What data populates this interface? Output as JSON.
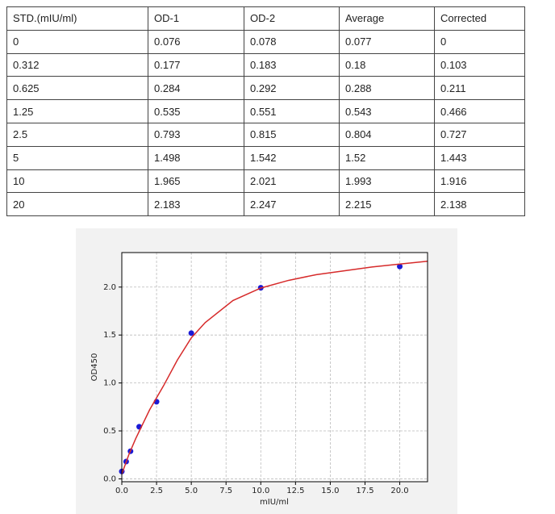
{
  "table": {
    "header": [
      "STD.(mIU/ml)",
      "OD-1",
      "OD-2",
      "Average",
      "Corrected"
    ],
    "rows": [
      [
        "0",
        "0.076",
        "0.078",
        "0.077",
        "0"
      ],
      [
        "0.312",
        "0.177",
        "0.183",
        "0.18",
        "0.103"
      ],
      [
        "0.625",
        "0.284",
        "0.292",
        "0.288",
        "0.211"
      ],
      [
        "1.25",
        "0.535",
        "0.551",
        "0.543",
        "0.466"
      ],
      [
        "2.5",
        "0.793",
        "0.815",
        "0.804",
        "0.727"
      ],
      [
        "5",
        "1.498",
        "1.542",
        "1.52",
        "1.443"
      ],
      [
        "10",
        "1.965",
        "2.021",
        "1.993",
        "1.916"
      ],
      [
        "20",
        "2.183",
        "2.247",
        "2.215",
        "2.138"
      ]
    ]
  },
  "chart_data": {
    "type": "scatter",
    "x_label": "mIU/ml",
    "y_label": "OD450",
    "xlim": [
      0,
      22
    ],
    "ylim": [
      -0.03,
      2.36
    ],
    "xticks": [
      {
        "value": 0,
        "label": "0.0"
      },
      2.5,
      {
        "value": 5,
        "label": "5.0"
      },
      7.5,
      {
        "value": 10,
        "label": "10.0"
      },
      12.5,
      {
        "value": 15,
        "label": "15.0"
      },
      17.5,
      {
        "value": 20,
        "label": "20.0"
      }
    ],
    "yticks": [
      {
        "value": 0,
        "label": "0.0"
      },
      0.5,
      {
        "value": 1,
        "label": "1.0"
      },
      1.5,
      {
        "value": 2,
        "label": "2.0"
      }
    ],
    "grid": true,
    "series": [
      {
        "type": "scatter",
        "color": "#1a1ad6",
        "x": [
          0,
          0.312,
          0.625,
          1.25,
          2.5,
          5,
          10,
          20
        ],
        "values": [
          0.077,
          0.18,
          0.288,
          0.543,
          0.804,
          1.52,
          1.993,
          2.215
        ]
      },
      {
        "type": "line",
        "color": "#d62a2a",
        "x": [
          0,
          0.5,
          1,
          2,
          3,
          4,
          5,
          6,
          8,
          10,
          12,
          14,
          16,
          18,
          20,
          22
        ],
        "values": [
          0.05,
          0.25,
          0.42,
          0.72,
          0.97,
          1.24,
          1.47,
          1.63,
          1.86,
          1.99,
          2.07,
          2.13,
          2.17,
          2.21,
          2.24,
          2.27
        ]
      }
    ]
  }
}
